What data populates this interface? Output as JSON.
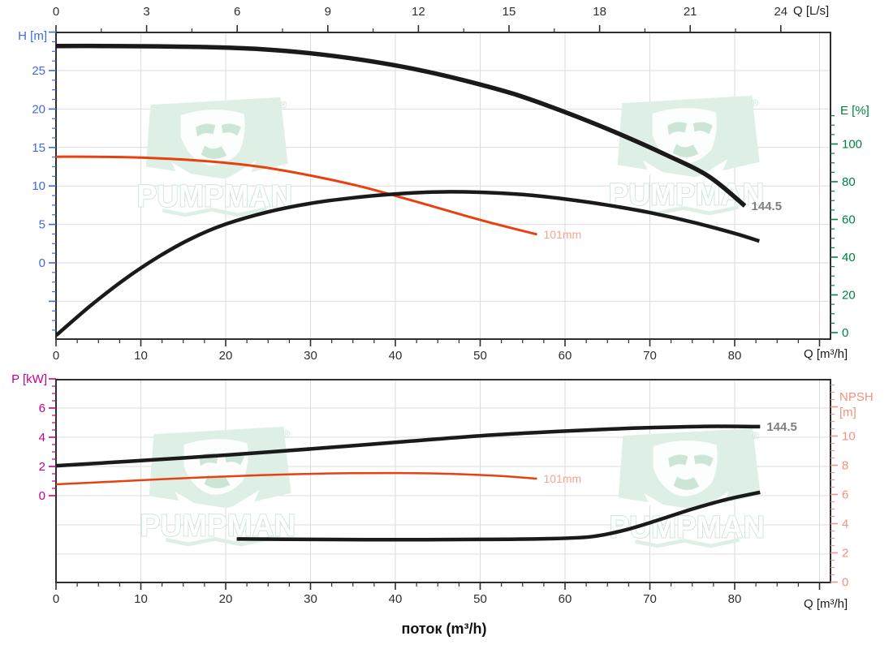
{
  "colors": {
    "h_axis": "#4169E1",
    "e_axis": "#00813F",
    "p_axis": "#C4008F",
    "npsh_axis": "#F4917E",
    "black": "#1A1A1A",
    "orange": "#E8400F",
    "orange_label": "#F7A58F",
    "gray_label": "#7F7F7F",
    "grid": "#DBDBDB",
    "border": "#2E2E2E",
    "watermark_fill": "#DEEFE6",
    "watermark_detail": "#CBE5D7"
  },
  "watermark": {
    "text": "PUMPMAN",
    "registered": "®"
  },
  "flow_label": "поток (m³/h)",
  "chart_data": [
    {
      "type": "line",
      "name": "head-efficiency-chart",
      "top_axis": {
        "label": "Q [L/s]",
        "ticks": [
          0,
          3,
          6,
          9,
          12,
          15,
          18,
          21,
          24
        ]
      },
      "bottom_axis": {
        "label": "Q [m³/h]",
        "ticks": [
          0,
          10,
          20,
          30,
          40,
          50,
          60,
          70,
          80
        ]
      },
      "left_axis": {
        "label": "H [m]",
        "color_key": "h_axis",
        "ticks": [
          0,
          5,
          10,
          15,
          20,
          25
        ]
      },
      "right_axis": {
        "label": "E [%]",
        "color_key": "e_axis",
        "ticks": [
          0,
          20,
          40,
          60,
          80,
          100
        ]
      },
      "series": [
        {
          "name": "head-curve-144.5",
          "axis": "left",
          "color_key": "black",
          "width": 5.5,
          "end_label": {
            "text": "144.5",
            "color_key": "gray_label",
            "bold": true,
            "size": 15
          },
          "points": [
            [
              0,
              28.2
            ],
            [
              6,
              28.2
            ],
            [
              12,
              28.15
            ],
            [
              18,
              28.05
            ],
            [
              24,
              27.8
            ],
            [
              30,
              27.25
            ],
            [
              36,
              26.4
            ],
            [
              42,
              25.25
            ],
            [
              48,
              23.75
            ],
            [
              54,
              21.95
            ],
            [
              60,
              19.6
            ],
            [
              66,
              16.95
            ],
            [
              72,
              14.0
            ],
            [
              77,
              11.2
            ],
            [
              81.2,
              7.4
            ]
          ]
        },
        {
          "name": "head-curve-101mm",
          "axis": "left",
          "color_key": "orange",
          "width": 3,
          "end_label": {
            "text": "101mm",
            "color_key": "orange_label",
            "bold": false,
            "size": 14
          },
          "points": [
            [
              0,
              13.8
            ],
            [
              6,
              13.78
            ],
            [
              12,
              13.6
            ],
            [
              18,
              13.2
            ],
            [
              24,
              12.5
            ],
            [
              30,
              11.35
            ],
            [
              36,
              9.9
            ],
            [
              42,
              8.1
            ],
            [
              48,
              6.2
            ],
            [
              52,
              5.0
            ],
            [
              56.7,
              3.7
            ]
          ]
        },
        {
          "name": "efficiency-curve-144.5",
          "axis": "right",
          "color_key": "black",
          "width": 4.5,
          "end_label": null,
          "points": [
            [
              0,
              -1.5
            ],
            [
              4,
              14
            ],
            [
              8,
              28
            ],
            [
              12,
              40
            ],
            [
              16,
              50
            ],
            [
              20,
              57.5
            ],
            [
              25,
              64
            ],
            [
              30,
              68.5
            ],
            [
              35,
              71.5
            ],
            [
              40,
              73.5
            ],
            [
              45,
              74.6
            ],
            [
              50,
              74.4
            ],
            [
              55,
              73.2
            ],
            [
              60,
              70.8
            ],
            [
              65,
              67.6
            ],
            [
              70,
              63.6
            ],
            [
              75,
              58.6
            ],
            [
              80,
              52.6
            ],
            [
              82.9,
              48.5
            ]
          ]
        }
      ]
    },
    {
      "type": "line",
      "name": "power-npsh-chart",
      "top_axis": null,
      "bottom_axis": {
        "label": "Q [m³/h]",
        "ticks": [
          0,
          10,
          20,
          30,
          40,
          50,
          60,
          70,
          80
        ]
      },
      "left_axis": {
        "label": "P [kW]",
        "color_key": "p_axis",
        "ticks": [
          0,
          2,
          4,
          6
        ]
      },
      "right_axis": {
        "label": "NPSH",
        "unit": "[m]",
        "color_key": "npsh_axis",
        "ticks": [
          0,
          2,
          4,
          6,
          8,
          10
        ]
      },
      "series": [
        {
          "name": "power-curve-144.5",
          "axis": "left",
          "color_key": "black",
          "width": 4.5,
          "end_label": {
            "text": "144.5",
            "color_key": "gray_label",
            "bold": true,
            "size": 15
          },
          "points": [
            [
              0,
              2.05
            ],
            [
              10,
              2.4
            ],
            [
              20,
              2.78
            ],
            [
              30,
              3.2
            ],
            [
              40,
              3.65
            ],
            [
              50,
              4.1
            ],
            [
              60,
              4.42
            ],
            [
              68,
              4.62
            ],
            [
              76,
              4.74
            ],
            [
              83,
              4.73
            ]
          ]
        },
        {
          "name": "power-curve-101mm",
          "axis": "left",
          "color_key": "orange",
          "width": 2.5,
          "end_label": {
            "text": "101mm",
            "color_key": "orange_label",
            "bold": false,
            "size": 14
          },
          "points": [
            [
              0,
              0.78
            ],
            [
              8,
              1.0
            ],
            [
              16,
              1.22
            ],
            [
              24,
              1.4
            ],
            [
              32,
              1.52
            ],
            [
              40,
              1.55
            ],
            [
              46,
              1.5
            ],
            [
              52,
              1.36
            ],
            [
              56.7,
              1.17
            ]
          ]
        },
        {
          "name": "npsh-curve-144.5",
          "axis": "right",
          "color_key": "black",
          "width": 4.5,
          "end_label": null,
          "points": [
            [
              21.3,
              2.95
            ],
            [
              30,
              2.92
            ],
            [
              40,
              2.9
            ],
            [
              50,
              2.92
            ],
            [
              58,
              2.97
            ],
            [
              63,
              3.1
            ],
            [
              67,
              3.55
            ],
            [
              71,
              4.25
            ],
            [
              75,
              5.0
            ],
            [
              79,
              5.65
            ],
            [
              83,
              6.15
            ]
          ]
        }
      ]
    }
  ]
}
